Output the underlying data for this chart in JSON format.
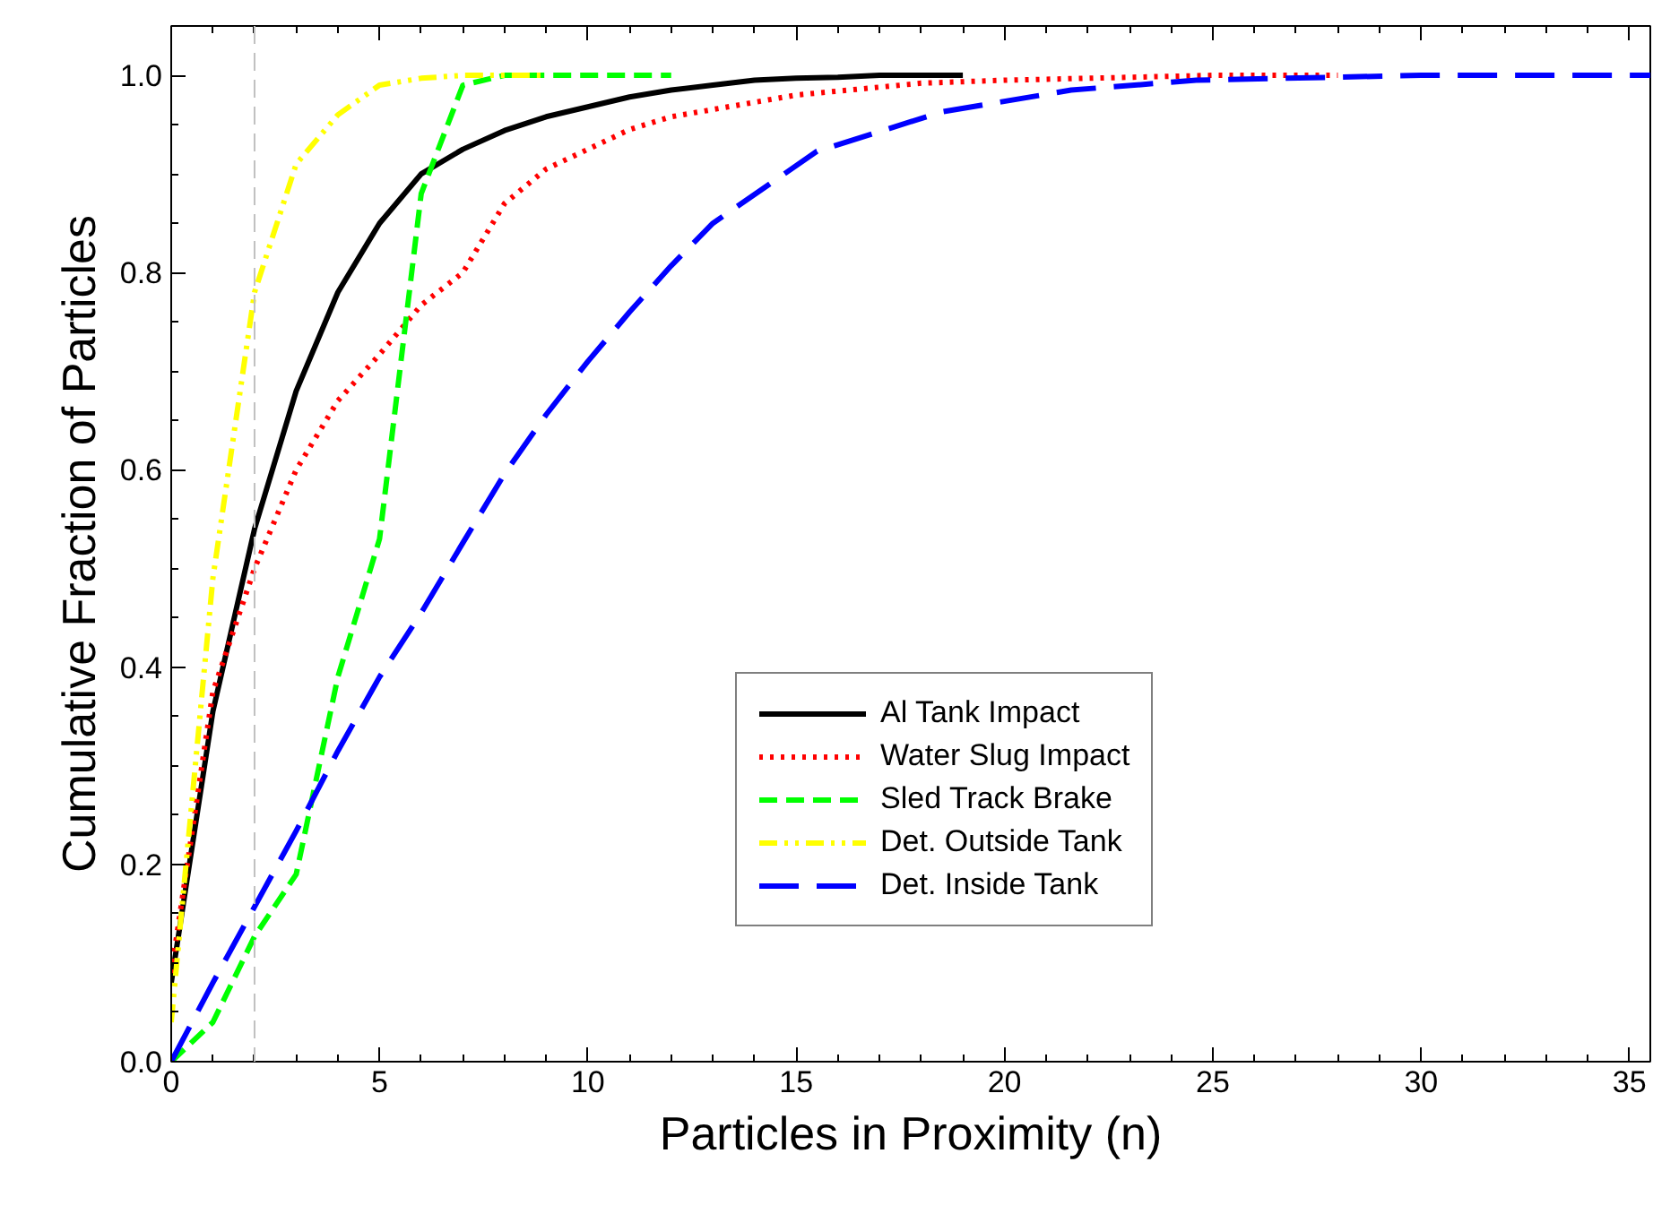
{
  "chart_data": {
    "type": "line",
    "xlabel": "Particles in Proximity (n)",
    "ylabel": "Cumulative Fraction of Particles",
    "xlim": [
      0,
      35.5
    ],
    "ylim": [
      0,
      1.05
    ],
    "xticks": [
      0,
      5,
      10,
      15,
      20,
      25,
      30,
      35
    ],
    "yticks": [
      {
        "value": 0,
        "label": "0.0"
      },
      {
        "value": 0.2,
        "label": "0.2"
      },
      {
        "value": 0.4,
        "label": "0.4"
      },
      {
        "value": 0.6,
        "label": "0.6"
      },
      {
        "value": 0.8,
        "label": "0.8"
      },
      {
        "value": 1,
        "label": "1.0"
      }
    ],
    "grid": false,
    "legend": "right",
    "marker": "none",
    "ref_lines": [
      {
        "axis": "x",
        "value": 2,
        "label": null,
        "color": "#c0c0c0",
        "line_style": "dashed"
      }
    ],
    "series": [
      {
        "name": "Al Tank Impact",
        "color": "#000000",
        "line_style": "solid",
        "x": [
          0,
          1,
          2,
          3,
          4,
          5,
          6,
          7,
          8,
          9,
          10,
          11,
          12,
          13,
          14,
          15,
          16,
          17,
          18,
          19
        ],
        "values": [
          0.08,
          0.355,
          0.54,
          0.68,
          0.78,
          0.85,
          0.9,
          0.925,
          0.944,
          0.958,
          0.968,
          0.978,
          0.985,
          0.99,
          0.995,
          0.997,
          0.998,
          1.0,
          1.0,
          1.0
        ]
      },
      {
        "name": "Water Slug Impact",
        "color": "#ff0000",
        "line_style": "dotted",
        "x": [
          0,
          1,
          2,
          3,
          4,
          5,
          6,
          7,
          8,
          9,
          10,
          11,
          12,
          15,
          18,
          20,
          25,
          28
        ],
        "values": [
          0.09,
          0.375,
          0.5,
          0.6,
          0.67,
          0.717,
          0.767,
          0.8,
          0.87,
          0.905,
          0.925,
          0.945,
          0.958,
          0.98,
          0.992,
          0.995,
          1.0,
          1.0
        ]
      },
      {
        "name": "Sled Track Brake",
        "color": "#00ff00",
        "line_style": "dashed",
        "x": [
          0,
          1,
          2,
          3,
          4,
          5,
          6,
          7,
          8,
          9,
          10,
          11,
          12
        ],
        "values": [
          0,
          0.04,
          0.127,
          0.19,
          0.39,
          0.53,
          0.88,
          0.99,
          1.0,
          1.0,
          1.0,
          1.0,
          1.0
        ]
      },
      {
        "name": "Det. Outside Tank",
        "color": "#ffff00",
        "line_style": "dashdot",
        "x": [
          0,
          1,
          2,
          3,
          4,
          5,
          6,
          7,
          8,
          9
        ],
        "values": [
          0.04,
          0.49,
          0.78,
          0.91,
          0.96,
          0.99,
          0.997,
          1.0,
          1.0,
          1.0
        ]
      },
      {
        "name": "Det. Inside Tank",
        "color": "#0000ff",
        "line_style": "longdash",
        "x": [
          0,
          1,
          2,
          3,
          4,
          5,
          6,
          7,
          8,
          9,
          10,
          11,
          12,
          13,
          15.5,
          18.5,
          21.6,
          24.6,
          30,
          35.5
        ],
        "values": [
          0,
          0.08,
          0.157,
          0.234,
          0.315,
          0.39,
          0.455,
          0.526,
          0.596,
          0.656,
          0.71,
          0.76,
          0.807,
          0.85,
          0.923,
          0.963,
          0.985,
          0.995,
          1.0,
          1.0
        ]
      }
    ]
  }
}
